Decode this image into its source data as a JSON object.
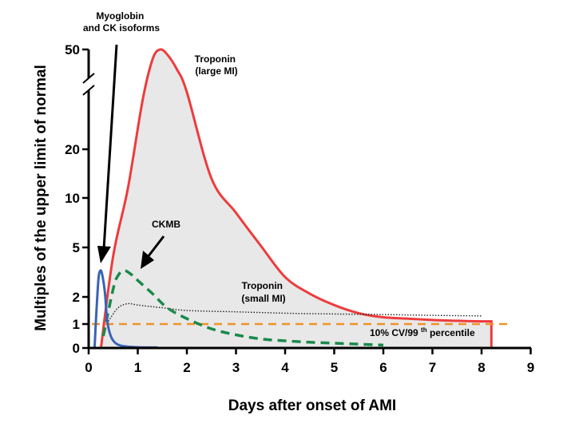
{
  "chart_data": {
    "type": "line",
    "title": "",
    "xlabel": "Days after onset of AMI",
    "ylabel": "Multiples of the upper limit of normal",
    "xlim": [
      0,
      9
    ],
    "x_ticks": [
      "0",
      "1",
      "2",
      "3",
      "4",
      "5",
      "6",
      "7",
      "8",
      "9"
    ],
    "y_scale": "broken nonlinear (axis break between 20 and 50)",
    "y_ticks": [
      "0",
      "1",
      "2",
      "5",
      "10",
      "20",
      "50"
    ],
    "grid": false,
    "legend": "none (series labeled inline)",
    "series": [
      {
        "name": "Troponin (large MI)",
        "color": "#ee3b3b",
        "fill": "#e8e8e8",
        "style": "solid",
        "x": [
          0.25,
          0.5,
          0.8,
          1.1,
          1.3,
          1.45,
          1.6,
          1.8,
          2.0,
          2.5,
          3.0,
          3.5,
          4.0,
          4.5,
          5.0,
          5.5,
          6.0,
          6.5,
          7.0,
          7.5,
          8.0,
          8.2
        ],
        "y": [
          0,
          4.5,
          12,
          30,
          46,
          50,
          48,
          42,
          33,
          14,
          8.5,
          5.2,
          3.2,
          2.2,
          1.7,
          1.4,
          1.25,
          1.2,
          1.15,
          1.12,
          1.1,
          1.1
        ]
      },
      {
        "name": "Troponin (small MI)",
        "color": "#222222",
        "style": "dotted",
        "x": [
          0.4,
          0.6,
          0.8,
          1.0,
          1.5,
          2.0,
          3.0,
          4.0,
          5.0,
          6.0,
          7.0,
          8.0
        ],
        "y": [
          1.1,
          1.6,
          1.75,
          1.7,
          1.6,
          1.5,
          1.45,
          1.4,
          1.37,
          1.35,
          1.32,
          1.3
        ]
      },
      {
        "name": "CKMB",
        "color": "#1a8a4a",
        "style": "dashed",
        "x": [
          0.3,
          0.5,
          0.6,
          0.72,
          0.85,
          1.0,
          1.3,
          1.6,
          2.0,
          2.5,
          3.0,
          3.5,
          4.0,
          4.5,
          5.0,
          5.5,
          6.0
        ],
        "y": [
          0.5,
          2.5,
          3.3,
          3.6,
          3.4,
          3.0,
          2.2,
          1.6,
          1.2,
          0.8,
          0.55,
          0.38,
          0.3,
          0.24,
          0.2,
          0.16,
          0.12
        ]
      },
      {
        "name": "Myoglobin and CK isoforms",
        "color": "#3a63b8",
        "style": "solid",
        "x": [
          0.12,
          0.16,
          0.2,
          0.24,
          0.28,
          0.33,
          0.38,
          0.45,
          0.55,
          0.7,
          1.0,
          1.4
        ],
        "y": [
          0,
          1.5,
          3.1,
          3.6,
          3.3,
          2.3,
          1.1,
          0.5,
          0.2,
          0.08,
          0.03,
          0.02
        ]
      }
    ],
    "reference_line": {
      "label": "10% CV/99th percentile",
      "superscript_text": "th",
      "y": 1,
      "color": "#f0922a",
      "style": "dashed"
    },
    "annotations": [
      {
        "text": "Troponin",
        "line2": "(large MI)"
      },
      {
        "text": "Troponin",
        "line2": "(small MI)"
      },
      {
        "text": "CKMB"
      },
      {
        "text": "Myoglobin",
        "line2": "and CK isoforms"
      }
    ]
  }
}
